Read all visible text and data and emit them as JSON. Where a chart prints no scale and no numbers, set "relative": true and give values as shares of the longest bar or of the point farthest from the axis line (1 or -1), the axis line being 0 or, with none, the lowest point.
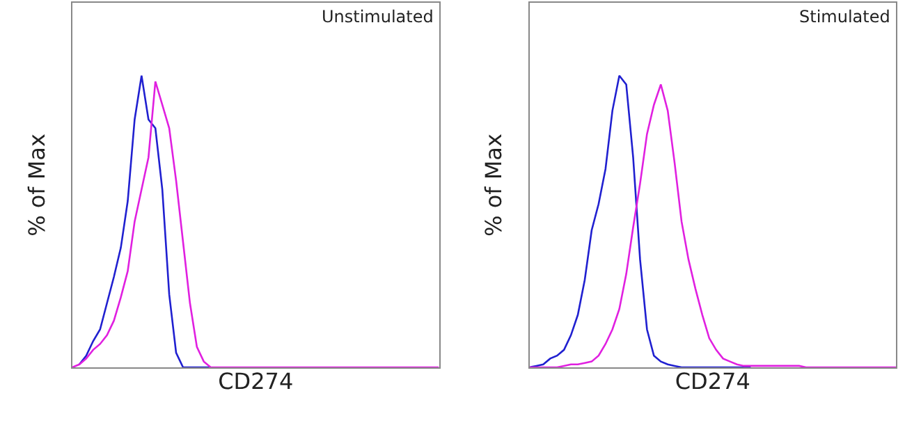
{
  "chart_data": [
    {
      "type": "line",
      "relative": true,
      "ylabel": "% of Max",
      "xlabel": "CD274",
      "annotations": [
        "Unstimulated"
      ],
      "tick_labels": false,
      "categories": [
        null,
        null,
        null,
        null,
        null,
        null,
        null,
        null,
        null,
        null,
        null,
        null,
        null,
        null,
        null,
        null,
        null,
        null,
        null,
        null,
        null,
        null,
        null,
        null,
        null,
        null,
        null,
        null,
        null,
        null,
        null,
        null,
        null,
        null,
        null,
        null,
        null,
        null,
        null,
        null,
        null,
        null,
        null,
        null,
        null,
        null,
        null,
        null,
        null,
        null,
        null,
        null,
        null,
        null
      ],
      "series": [
        {
          "color": "#2020d0",
          "values": [
            null,
            0.01,
            0.04,
            0.09,
            0.13,
            0.22,
            0.31,
            0.41,
            0.57,
            0.85,
            1.0,
            0.85,
            0.82,
            0.61,
            0.25,
            0.05,
            0,
            0,
            0,
            0,
            0,
            null,
            null,
            null,
            null,
            null,
            null,
            null,
            null,
            null,
            null,
            null,
            null,
            null,
            null,
            null,
            null,
            null,
            null,
            null,
            null,
            null,
            null,
            null,
            null,
            null,
            null,
            null,
            null,
            null,
            null,
            null,
            null,
            null
          ]
        },
        {
          "color": "#e020e0",
          "values": [
            0,
            0.01,
            0.03,
            0.06,
            0.08,
            0.11,
            0.16,
            0.24,
            0.33,
            0.5,
            0.61,
            0.72,
            0.98,
            0.9,
            0.82,
            0.64,
            0.43,
            0.22,
            0.07,
            0.02,
            0,
            0,
            0,
            0,
            0,
            0,
            0,
            0,
            0,
            0,
            0,
            0,
            0,
            0,
            0,
            0,
            0,
            0,
            0,
            0,
            0,
            0,
            0,
            0,
            0,
            0,
            0,
            0,
            0,
            0,
            0,
            0,
            0,
            0
          ]
        }
      ]
    },
    {
      "type": "line",
      "relative": true,
      "ylabel": "% of Max",
      "xlabel": "CD274",
      "annotations": [
        "Stimulated"
      ],
      "tick_labels": false,
      "categories": [
        null,
        null,
        null,
        null,
        null,
        null,
        null,
        null,
        null,
        null,
        null,
        null,
        null,
        null,
        null,
        null,
        null,
        null,
        null,
        null,
        null,
        null,
        null,
        null,
        null,
        null,
        null,
        null,
        null,
        null,
        null,
        null,
        null,
        null,
        null,
        null,
        null,
        null,
        null,
        null,
        null,
        null,
        null,
        null,
        null,
        null,
        null,
        null,
        null,
        null,
        null,
        null,
        null,
        null
      ],
      "series": [
        {
          "color": "#2020d0",
          "values": [
            0,
            0.005,
            0.01,
            0.03,
            0.04,
            0.06,
            0.11,
            0.18,
            0.3,
            0.47,
            0.56,
            0.68,
            0.88,
            1.0,
            0.97,
            0.72,
            0.37,
            0.13,
            0.04,
            0.02,
            0.01,
            0.005,
            0,
            0,
            0,
            0,
            0,
            0,
            0,
            0,
            0,
            0,
            0,
            null,
            null,
            null,
            null,
            null,
            null,
            null,
            null,
            null,
            null,
            null,
            null,
            null,
            null,
            null,
            null,
            null,
            null,
            null,
            null,
            null
          ]
        },
        {
          "color": "#e020e0",
          "values": [
            0,
            0,
            0,
            0,
            0,
            0.005,
            0.01,
            0.01,
            0.015,
            0.02,
            0.04,
            0.08,
            0.13,
            0.2,
            0.32,
            0.48,
            0.63,
            0.8,
            0.9,
            0.97,
            0.88,
            0.7,
            0.5,
            0.37,
            0.27,
            0.18,
            0.1,
            0.06,
            0.03,
            0.02,
            0.01,
            0.005,
            0.005,
            0.005,
            0.005,
            0.005,
            0.005,
            0.005,
            0.005,
            0.005,
            0,
            0,
            0,
            0,
            0,
            0,
            0,
            0,
            0,
            0,
            0,
            0,
            0,
            0
          ]
        }
      ]
    }
  ]
}
